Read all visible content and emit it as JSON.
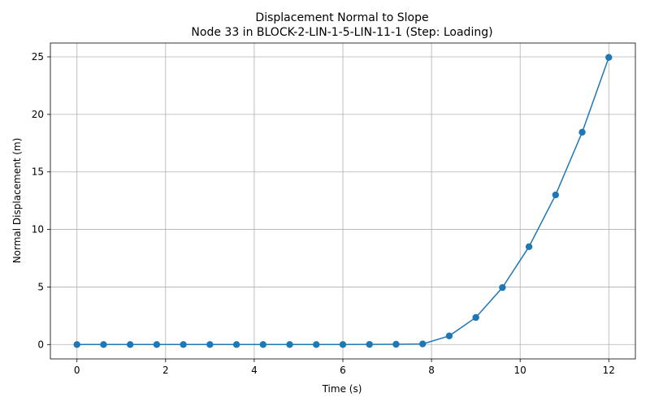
{
  "chart_data": {
    "type": "line",
    "title": "Displacement Normal to Slope",
    "subtitle": "Node 33 in BLOCK-2-LIN-1-5-LIN-11-1 (Step: Loading)",
    "xlabel": "Time (s)",
    "ylabel": "Normal Displacement (m)",
    "xlim": [
      -0.6,
      12.6
    ],
    "ylim": [
      -1.25,
      26.2
    ],
    "xticks": [
      0,
      2,
      4,
      6,
      8,
      10,
      12
    ],
    "yticks": [
      0,
      5,
      10,
      15,
      20,
      25
    ],
    "grid": true,
    "marker": "circle",
    "color": "#1f77b4",
    "series": [
      {
        "x": [
          0,
          0.6,
          1.2,
          1.8,
          2.4,
          3.0,
          3.6,
          4.2,
          4.8,
          5.4,
          6.0,
          6.6,
          7.2,
          7.8,
          8.4,
          9.0,
          9.6,
          10.2,
          10.8,
          11.4,
          12.0
        ],
        "y": [
          0,
          0,
          0,
          0,
          0,
          0,
          0,
          0,
          0,
          0,
          0,
          0.01,
          0.02,
          0.05,
          0.75,
          2.35,
          4.95,
          8.5,
          13.0,
          18.45,
          24.95
        ]
      }
    ]
  }
}
